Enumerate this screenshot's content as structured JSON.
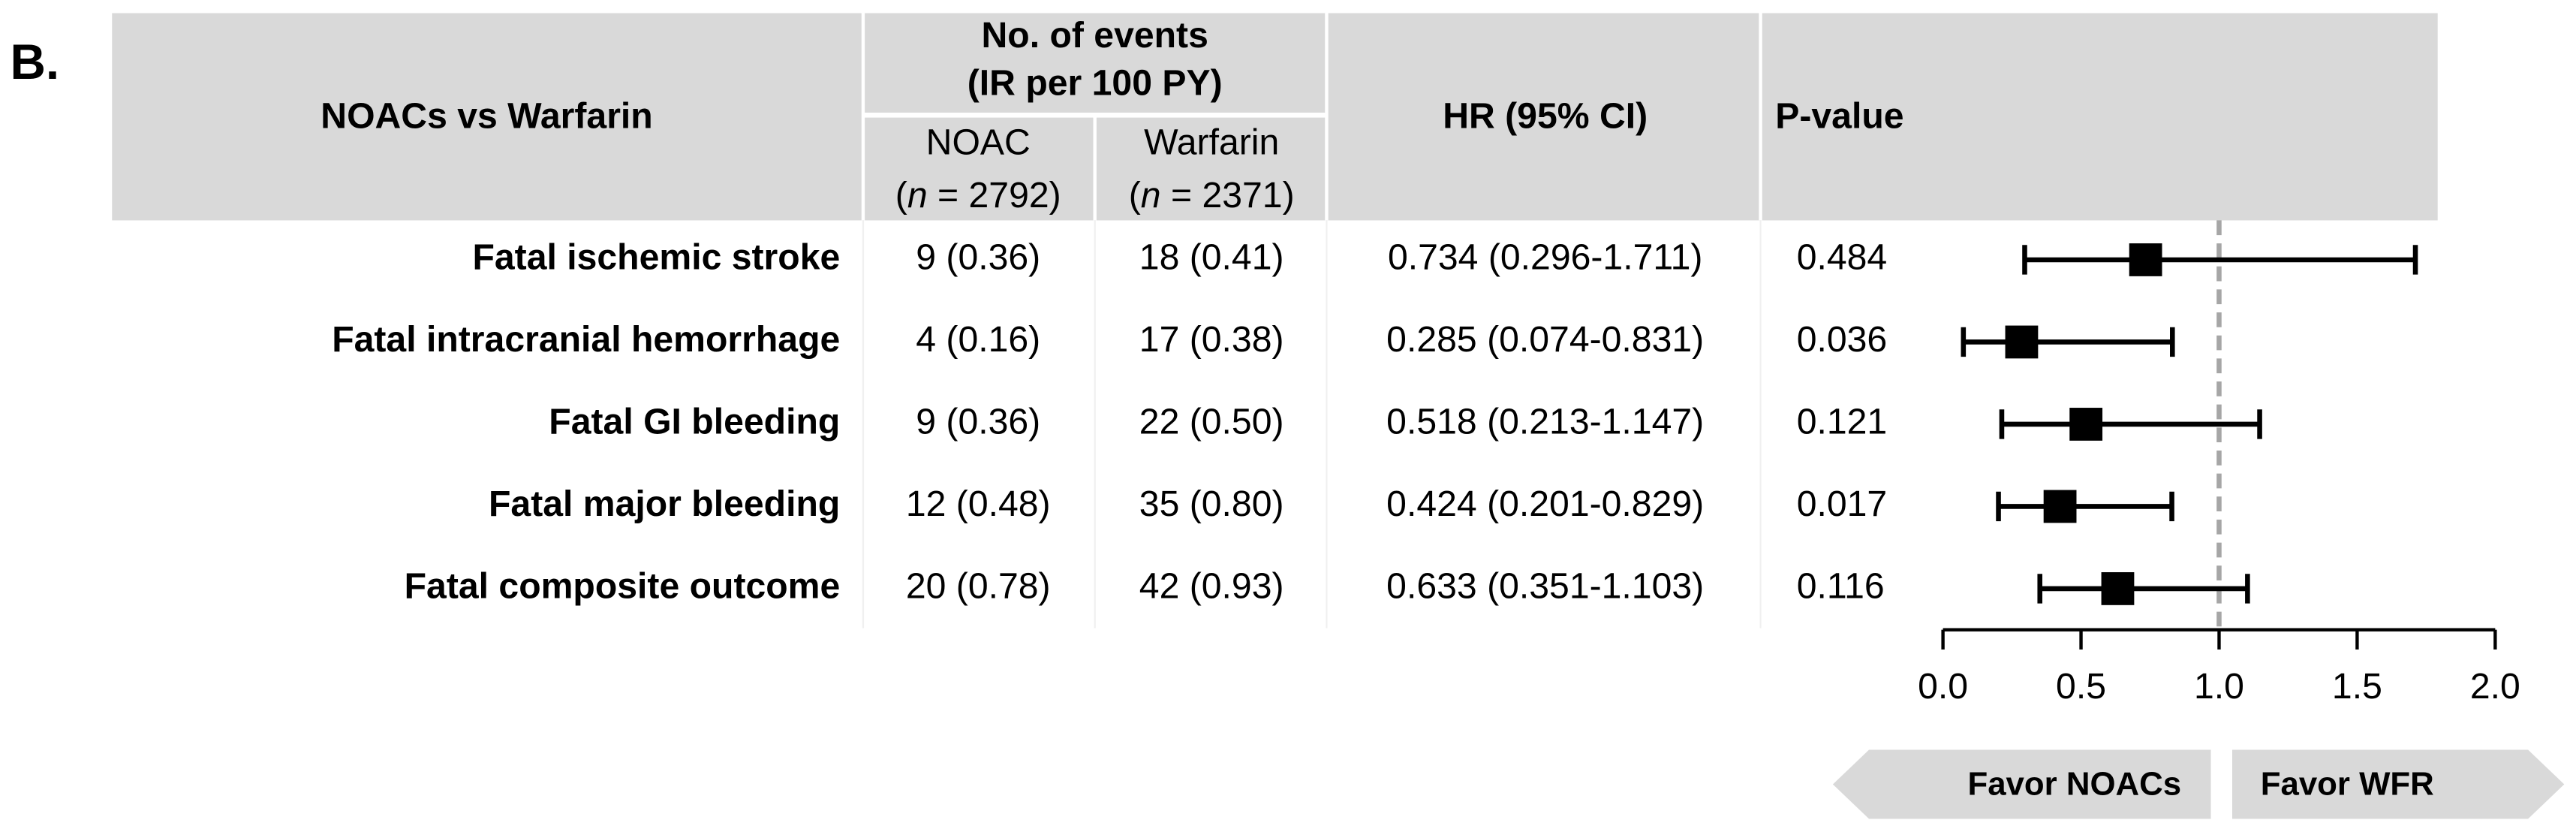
{
  "label": "B.",
  "chart_data": {
    "type": "forest",
    "header": {
      "title": "NOACs vs Warfarin",
      "events": [
        "No. of events",
        "(IR per 100 PY)"
      ],
      "noac": [
        "NOAC",
        "(n = 2792)"
      ],
      "warfarin": [
        "Warfarin",
        "(n = 2371)"
      ],
      "hr": "HR (95% CI)",
      "p": "P-value"
    },
    "categories": [
      "Fatal ischemic stroke",
      "Fatal intracranial hemorrhage",
      "Fatal GI bleeding",
      "Fatal major bleeding",
      "Fatal composite outcome"
    ],
    "noac_events": [
      "9 (0.36)",
      "4 (0.16)",
      "9 (0.36)",
      "12 (0.48)",
      "20 (0.78)"
    ],
    "warfarin_events": [
      "18 (0.41)",
      "17 (0.38)",
      "22 (0.50)",
      "35 (0.80)",
      "42 (0.93)"
    ],
    "hr_ci": [
      "0.734 (0.296-1.711)",
      "0.285 (0.074-0.831)",
      "0.518 (0.213-1.147)",
      "0.424 (0.201-0.829)",
      "0.633 (0.351-1.103)"
    ],
    "p_values": [
      0.484,
      0.036,
      0.121,
      0.017,
      0.116
    ],
    "hr": [
      0.734,
      0.285,
      0.518,
      0.424,
      0.633
    ],
    "lower": [
      0.296,
      0.074,
      0.213,
      0.201,
      0.351
    ],
    "upper": [
      1.711,
      0.831,
      1.147,
      0.829,
      1.103
    ],
    "color": "#000000",
    "xlim": [
      0,
      2
    ],
    "xticks": [
      {
        "value": 0,
        "label": "0.0"
      },
      0.5,
      {
        "value": 1,
        "label": "1.0"
      },
      1.5,
      {
        "value": 2,
        "label": "2.0"
      }
    ],
    "reference_line": 1,
    "favor_labels": [
      "Favor NOACs",
      "Favor WFR"
    ]
  }
}
